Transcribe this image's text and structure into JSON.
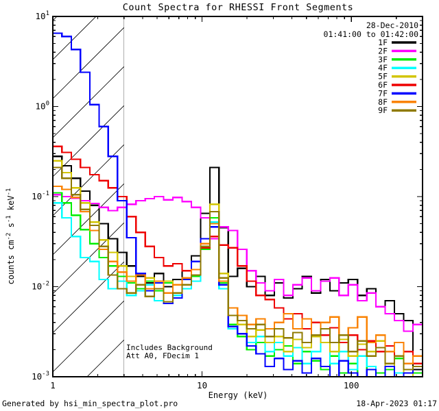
{
  "title": "Count Spectra for RHESSI Front Segments",
  "header": {
    "date": "28-Dec-2010",
    "time_range": "01:41:00 to 01:42:00"
  },
  "annotations": {
    "line1": "Includes Background",
    "line2": "Att A0, FDecim 1"
  },
  "footer": {
    "left": "Generated by hsi_min_spectra_plot.pro",
    "right": "18-Apr-2023 01:17"
  },
  "chart_data": {
    "type": "line",
    "title": "Count Spectra for RHESSI Front Segments",
    "x_scale": "log",
    "y_scale": "log",
    "xlabel": "Energy (keV)",
    "ylabel_parts": [
      {
        "t": "counts cm"
      },
      {
        "t": "-2",
        "sup": true
      },
      {
        "t": " s"
      },
      {
        "t": "-1",
        "sup": true
      },
      {
        "t": " keV"
      },
      {
        "t": "-1",
        "sup": true
      }
    ],
    "xlim": [
      1,
      300
    ],
    "ylim": [
      0.001,
      10
    ],
    "x_major_ticks": [
      1,
      10,
      100
    ],
    "y_major_tick_exponents": [
      1,
      0,
      -1,
      -2,
      -3
    ],
    "grid": false,
    "legend_position": "top-right",
    "hatch_region_kev": [
      1,
      3
    ],
    "line_style": "steps",
    "bin_edges_kev": [
      1.0,
      1.15,
      1.33,
      1.53,
      1.77,
      2.04,
      2.35,
      2.71,
      3.13,
      3.61,
      4.16,
      4.79,
      5.53,
      6.37,
      7.35,
      8.47,
      9.77,
      11.27,
      12.99,
      14.98,
      17.27,
      19.92,
      22.97,
      26.48,
      30.54,
      35.21,
      40.6,
      46.82,
      53.98,
      62.25,
      71.78,
      82.76,
      95.43,
      110.0,
      126.9,
      146.3,
      168.7,
      194.5,
      224.3,
      258.6,
      298.2
    ],
    "series": [
      {
        "name": "1F",
        "color": "#000000",
        "values": [
          0.28,
          0.22,
          0.16,
          0.115,
          0.08,
          0.05,
          0.034,
          0.024,
          0.017,
          0.013,
          0.011,
          0.014,
          0.01,
          0.012,
          0.015,
          0.022,
          0.065,
          0.21,
          0.045,
          0.013,
          0.016,
          0.01,
          0.013,
          0.008,
          0.011,
          0.0075,
          0.0095,
          0.013,
          0.0085,
          0.012,
          0.009,
          0.011,
          0.012,
          0.008,
          0.0095,
          0.006,
          0.007,
          0.005,
          0.0042,
          0.0012
        ]
      },
      {
        "name": "2F",
        "color": "#FF00FF",
        "values": [
          0.105,
          0.1,
          0.096,
          0.09,
          0.084,
          0.076,
          0.07,
          0.076,
          0.082,
          0.09,
          0.095,
          0.1,
          0.092,
          0.098,
          0.088,
          0.076,
          0.058,
          0.034,
          0.046,
          0.042,
          0.026,
          0.015,
          0.011,
          0.009,
          0.012,
          0.008,
          0.0105,
          0.0125,
          0.009,
          0.0115,
          0.0125,
          0.008,
          0.0105,
          0.007,
          0.0085,
          0.006,
          0.005,
          0.0042,
          0.0032,
          0.0038
        ]
      },
      {
        "name": "3F",
        "color": "#00EE00",
        "values": [
          0.11,
          0.085,
          0.062,
          0.043,
          0.03,
          0.021,
          0.017,
          0.013,
          0.011,
          0.0095,
          0.0115,
          0.009,
          0.011,
          0.008,
          0.0095,
          0.013,
          0.026,
          0.058,
          0.011,
          0.0038,
          0.0028,
          0.002,
          0.0024,
          0.0017,
          0.002,
          0.0022,
          0.0014,
          0.0019,
          0.0015,
          0.0012,
          0.0017,
          0.0011,
          0.0014,
          0.001,
          0.0013,
          0.0011,
          0.0012,
          0.0016,
          0.001,
          0.0011
        ]
      },
      {
        "name": "4F",
        "color": "#00FFFF",
        "values": [
          0.085,
          0.058,
          0.036,
          0.021,
          0.019,
          0.012,
          0.0095,
          0.0115,
          0.008,
          0.009,
          0.0105,
          0.007,
          0.0085,
          0.008,
          0.0095,
          0.0115,
          0.027,
          0.052,
          0.0095,
          0.0034,
          0.0038,
          0.0024,
          0.0028,
          0.0019,
          0.0024,
          0.0017,
          0.0021,
          0.0014,
          0.0019,
          0.0024,
          0.0014,
          0.0019,
          0.0012,
          0.0017,
          0.0013,
          0.001,
          0.0014,
          0.0011,
          0.0009,
          0.001
        ]
      },
      {
        "name": "5F",
        "color": "#D2C500",
        "values": [
          0.25,
          0.185,
          0.125,
          0.085,
          0.052,
          0.033,
          0.024,
          0.017,
          0.013,
          0.0105,
          0.0125,
          0.0095,
          0.0115,
          0.0085,
          0.0105,
          0.0135,
          0.03,
          0.082,
          0.014,
          0.0048,
          0.0038,
          0.0028,
          0.0033,
          0.0024,
          0.0028,
          0.0019,
          0.0026,
          0.0021,
          0.0028,
          0.0024,
          0.0019,
          0.0026,
          0.0017,
          0.0023,
          0.0019,
          0.0025,
          0.0013,
          0.0017,
          0.0011,
          0.001
        ]
      },
      {
        "name": "6F",
        "color": "#EE0000",
        "values": [
          0.36,
          0.31,
          0.26,
          0.21,
          0.175,
          0.15,
          0.125,
          0.1,
          0.06,
          0.04,
          0.028,
          0.021,
          0.017,
          0.018,
          0.015,
          0.019,
          0.027,
          0.036,
          0.029,
          0.027,
          0.017,
          0.0115,
          0.008,
          0.0072,
          0.0058,
          0.0044,
          0.005,
          0.0034,
          0.004,
          0.0029,
          0.0035,
          0.0024,
          0.0029,
          0.002,
          0.0025,
          0.0019,
          0.0022,
          0.0017,
          0.0019,
          0.0014
        ]
      },
      {
        "name": "7F",
        "color": "#0000FF",
        "values": [
          6.5,
          6.0,
          4.3,
          2.4,
          1.05,
          0.6,
          0.28,
          0.09,
          0.035,
          0.014,
          0.009,
          0.011,
          0.0065,
          0.0075,
          0.012,
          0.019,
          0.034,
          0.046,
          0.0105,
          0.0036,
          0.003,
          0.0022,
          0.0018,
          0.0013,
          0.0016,
          0.0012,
          0.0015,
          0.0011,
          0.0016,
          0.0013,
          0.001,
          0.0015,
          0.0011,
          0.0009,
          0.0012,
          0.001,
          0.0013,
          0.0009,
          0.0011,
          0.0013
        ]
      },
      {
        "name": "8F",
        "color": "#FA8200",
        "values": [
          0.13,
          0.12,
          0.098,
          0.068,
          0.042,
          0.026,
          0.019,
          0.0145,
          0.0115,
          0.0135,
          0.0095,
          0.0115,
          0.0085,
          0.0105,
          0.0125,
          0.0155,
          0.03,
          0.05,
          0.0115,
          0.0058,
          0.0048,
          0.0038,
          0.0044,
          0.0034,
          0.004,
          0.005,
          0.0034,
          0.0044,
          0.0029,
          0.004,
          0.0046,
          0.0029,
          0.0035,
          0.0046,
          0.0024,
          0.0029,
          0.0019,
          0.0024,
          0.0014,
          0.0017
        ]
      },
      {
        "name": "9F",
        "color": "#8F7A00",
        "values": [
          0.21,
          0.16,
          0.105,
          0.072,
          0.048,
          0.028,
          0.0135,
          0.0095,
          0.0085,
          0.0105,
          0.0078,
          0.0095,
          0.0068,
          0.0085,
          0.0105,
          0.0135,
          0.028,
          0.068,
          0.0125,
          0.0048,
          0.0042,
          0.0034,
          0.0038,
          0.0028,
          0.0034,
          0.0027,
          0.0031,
          0.0024,
          0.0029,
          0.0034,
          0.0024,
          0.0029,
          0.0019,
          0.0025,
          0.0017,
          0.0021,
          0.0014,
          0.0017,
          0.0012,
          0.0013
        ]
      }
    ]
  }
}
